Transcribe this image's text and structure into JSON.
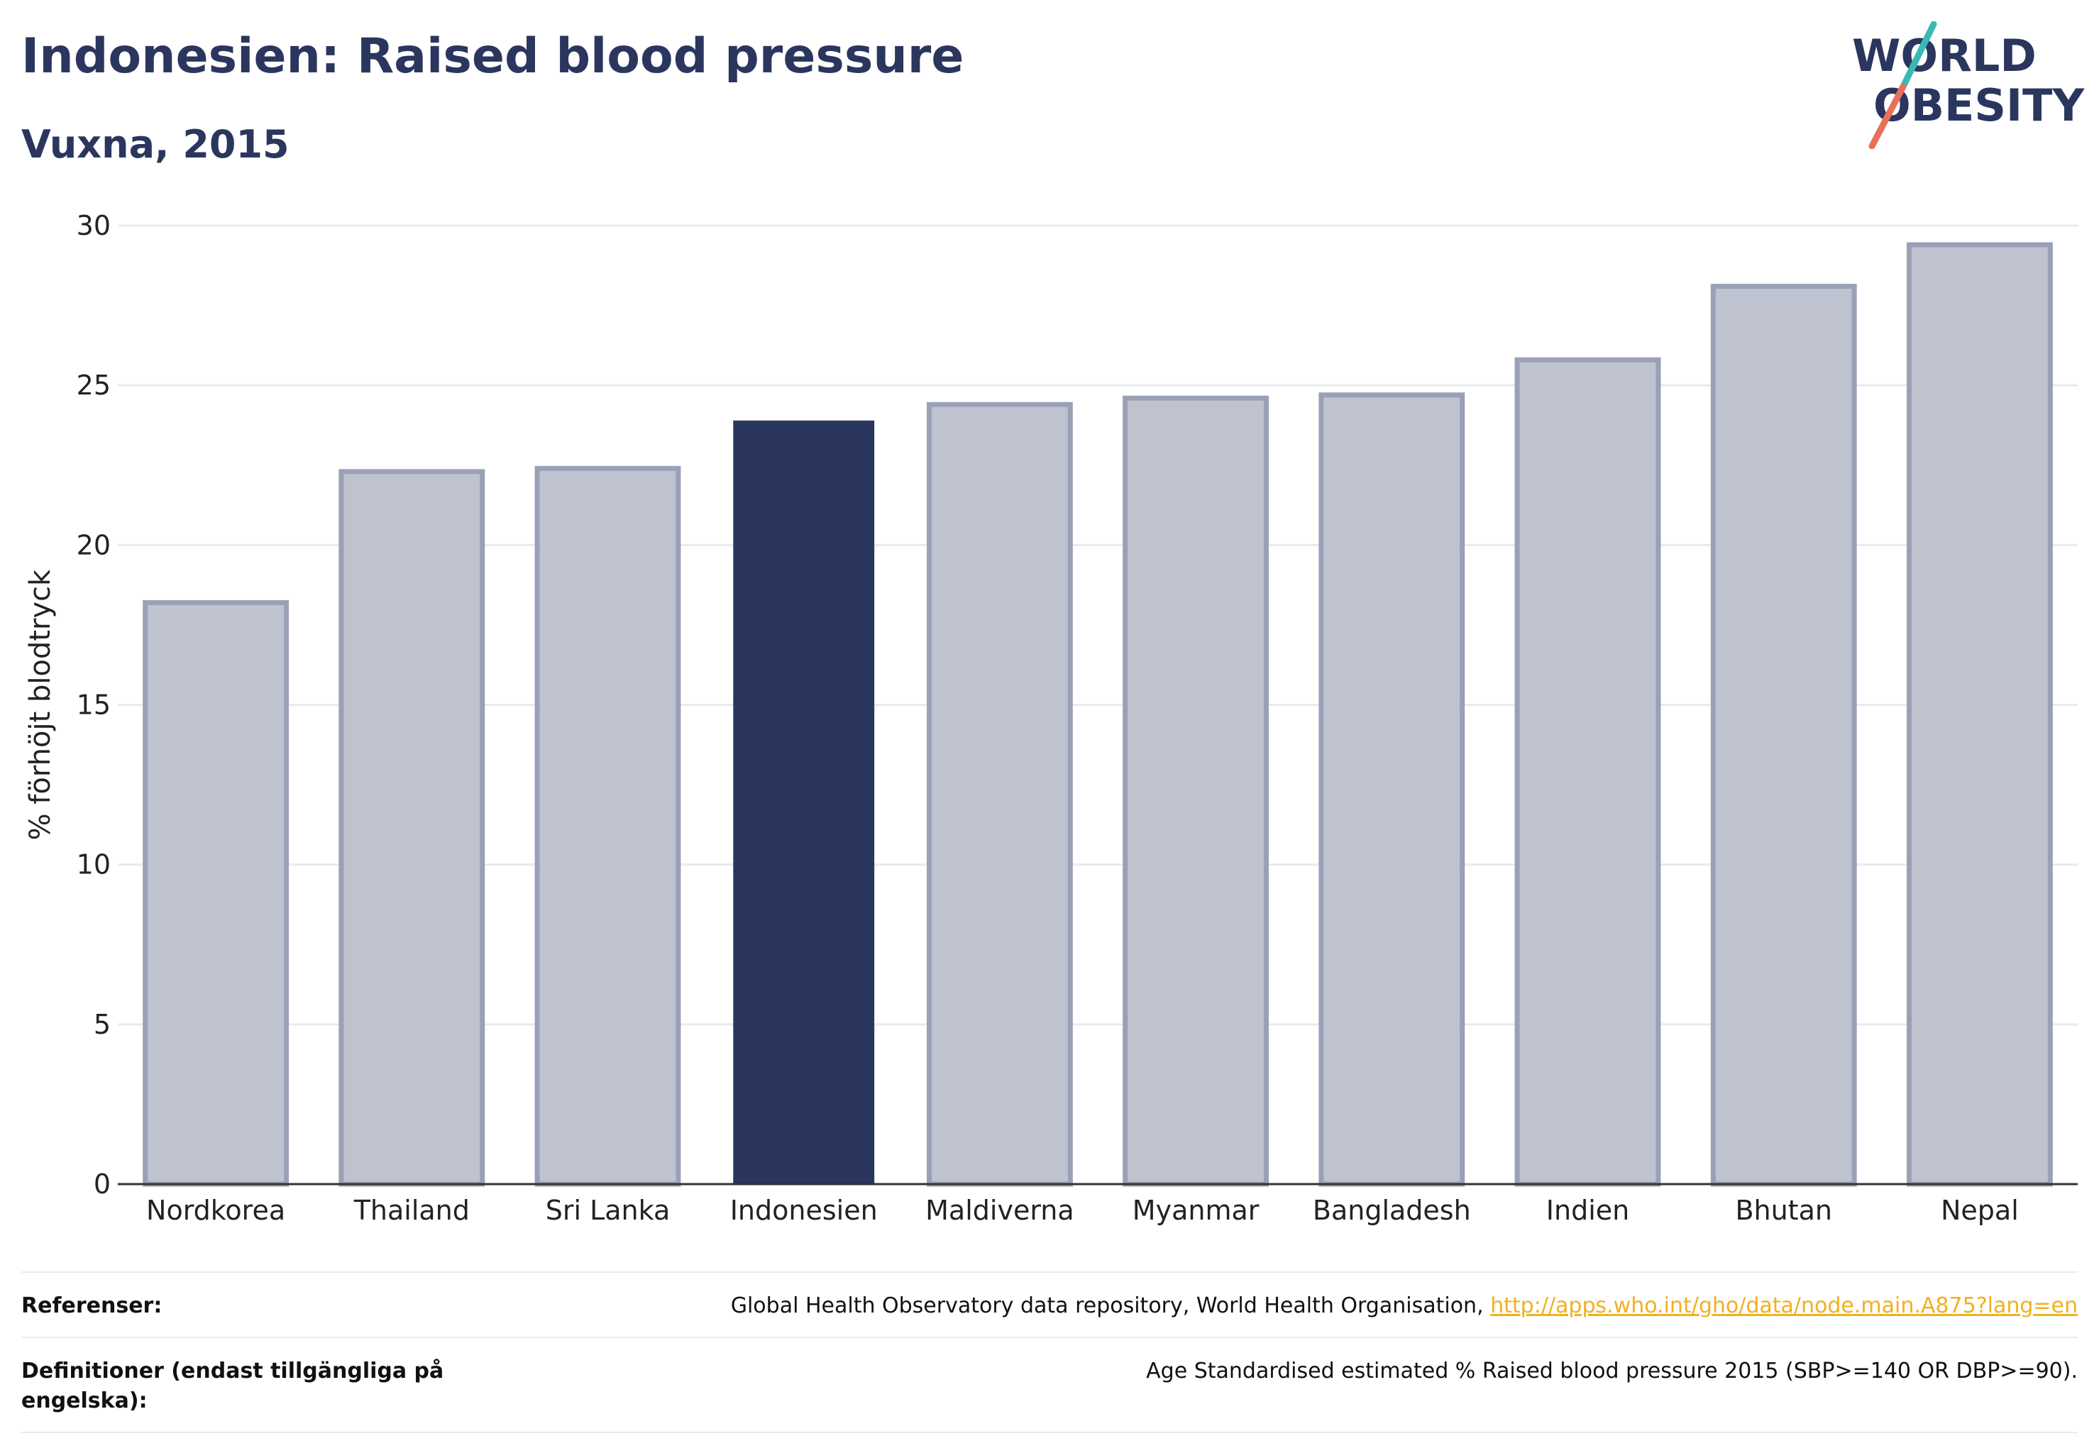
{
  "header": {
    "title": "Indonesien: Raised blood pressure",
    "subtitle": "Vuxna, 2015"
  },
  "logo": {
    "line1": "WORLD",
    "line2": "OBESITY",
    "colors": {
      "text": "#2b365f",
      "slash_top": "#3bb8b5",
      "slash_bottom": "#e8705a"
    }
  },
  "chart_data": {
    "type": "bar",
    "ylabel": "% förhöjt blodtryck",
    "ylim": [
      0,
      30
    ],
    "yticks": [
      0,
      5,
      10,
      15,
      20,
      25,
      30
    ],
    "grid": true,
    "highlight": "Indonesien",
    "categories": [
      "Nordkorea",
      "Thailand",
      "Sri Lanka",
      "Indonesien",
      "Maldiverna",
      "Myanmar",
      "Bangladesh",
      "Indien",
      "Bhutan",
      "Nepal"
    ],
    "values": [
      18.2,
      22.3,
      22.4,
      23.9,
      24.4,
      24.6,
      24.7,
      25.8,
      28.1,
      29.4
    ],
    "colors": {
      "bar": "#bfc2cf",
      "bar_border": "#9aa0b6",
      "highlight": "#2b365f",
      "grid": "#e9eaf0",
      "axis": "#333333"
    }
  },
  "references": {
    "rows": [
      {
        "label": "Referenser:",
        "text": "Global Health Observatory data repository, World Health Organisation, ",
        "link": "http://apps.who.int/gho/data/node.main.A875?lang=en"
      },
      {
        "label": "Definitioner (endast tillgängliga på engelska):",
        "text": "Age Standardised estimated % Raised blood pressure 2015 (SBP>=140 OR DBP>=90).",
        "link": ""
      }
    ]
  }
}
